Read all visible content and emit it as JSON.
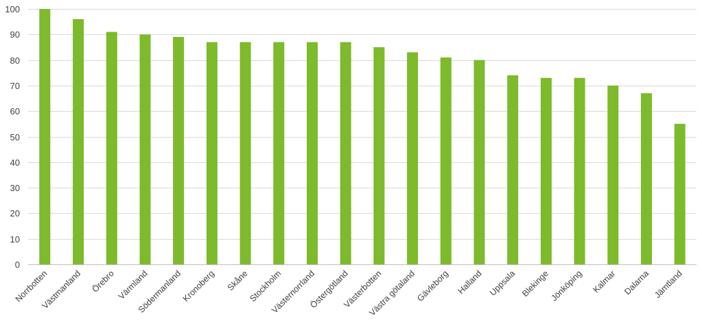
{
  "chart_data": {
    "type": "bar",
    "title": "",
    "xlabel": "",
    "ylabel": "",
    "ylim": [
      0,
      100
    ],
    "yticks": [
      0,
      10,
      20,
      30,
      40,
      50,
      60,
      70,
      80,
      90,
      100
    ],
    "grid": true,
    "legend": "none",
    "bar_color": "#7dba2c",
    "categories": [
      "Norrbotten",
      "Västmanland",
      "Örebro",
      "Värmland",
      "Södermanland",
      "Kronoberg",
      "Skåne",
      "Stockholm",
      "Västernorrland",
      "Östergötland",
      "Västerbotten",
      "Västra götaland",
      "Gävleborg",
      "Halland",
      "Uppsala",
      "Blekinge",
      "Jönköping",
      "Kalmar",
      "Dalarna",
      "Jämtland"
    ],
    "values": [
      100,
      96,
      91,
      90,
      89,
      87,
      87,
      87,
      87,
      87,
      85,
      83,
      81,
      80,
      74,
      73,
      73,
      70,
      67,
      55
    ]
  }
}
